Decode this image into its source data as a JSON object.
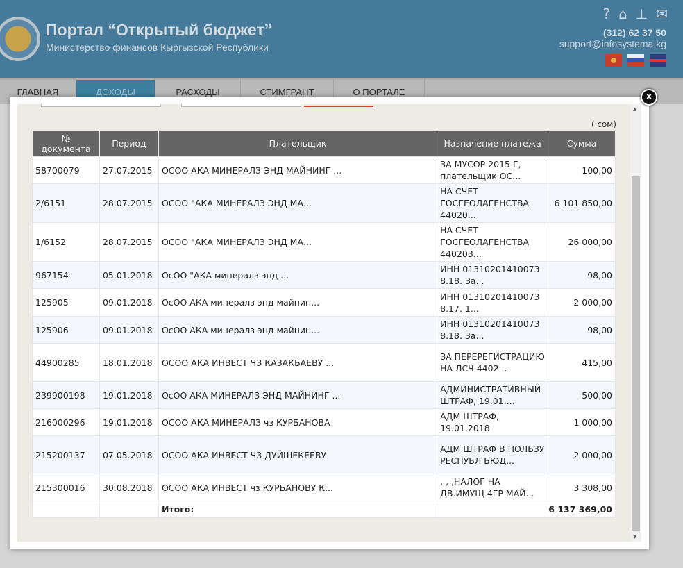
{
  "header": {
    "title": "Портал “Открытый бюджет”",
    "subtitle": "Министерство финансов Кыргызской Республики",
    "phone": "(312) 62 37 50",
    "email": "support@infosystema.kg",
    "icons": [
      "help-icon",
      "home-icon",
      "sitemap-icon",
      "mail-icon"
    ],
    "flags": [
      "kyrgyz-flag",
      "russian-flag",
      "uk-flag"
    ]
  },
  "nav": {
    "tabs": [
      {
        "label": "ГЛАВНАЯ"
      },
      {
        "label": "ДОХОДЫ",
        "active": true
      },
      {
        "label": "РАСХОДЫ"
      },
      {
        "label": "СТИМГРАНТ"
      },
      {
        "label": "О ПОРТАЛЕ"
      }
    ]
  },
  "modal": {
    "unit": "( сом)",
    "columns": [
      "№ документа",
      "Период",
      "Плательщик",
      "Назначение платежа",
      "Сумма"
    ],
    "rows": [
      [
        "58700079",
        "27.07.2015",
        "ОСОО АКА МИНЕРАЛЗ ЭНД МАЙНИНГ ...",
        "ЗА МУСОР 2015 Г, плательщик ОС...",
        "100,00"
      ],
      [
        "2/6151",
        "28.07.2015",
        "ОСОО \"АКА МИНЕРАЛЗ ЭНД МА...",
        "НА СЧЕТ ГОСГЕОЛАГЕНСТВА 44020...",
        "6 101 850,00"
      ],
      [
        "1/6152",
        "28.07.2015",
        "ОСОО \"АКА МИНЕРАЛЗ ЭНД МА...",
        "НА СЧЕТ ГОСГЕОЛАГЕНСТВА 440203...",
        "26 000,00"
      ],
      [
        "967154",
        "05.01.2018",
        "ОсОО \"АКА минералз энд ...",
        "ИНН 01310201410073 8.18. За...",
        "98,00"
      ],
      [
        "125905",
        "09.01.2018",
        "ОсОО АКА минералз энд майнин...",
        "ИНН 01310201410073 8.17. 1...",
        "2 000,00"
      ],
      [
        "125906",
        "09.01.2018",
        "ОсОО АКА минералз энд майнин...",
        "ИНН 01310201410073 8.18. За...",
        "98,00"
      ],
      [
        "44900285",
        "18.01.2018",
        "ОСОО АКА ИНВЕСТ ЧЗ КАЗАКБАЕВУ ...",
        "ЗА ПЕРЕРЕГИСТРАЦИЮ НА ЛСЧ 4402...",
        "415,00"
      ],
      [
        "239900198",
        "19.01.2018",
        "ОсОО АКА МИНЕРАЛЗ ЭНД МАЙНИНГ ...",
        "АДМИНИСТРАТИВНЫЙ ШТРАФ, 19.01....",
        "500,00"
      ],
      [
        "216000296",
        "19.01.2018",
        "ОСОО АКА МИНЕРАЛЗ чз КУРБАНОВА",
        "АДМ ШТРАФ, 19.01.2018",
        "1 000,00"
      ],
      [
        "215200137",
        "07.05.2018",
        "ОСОО АКА ИНВЕСТ ЧЗ ДУЙШЕКЕЕВУ",
        "АДМ ШТРАФ В ПОЛЬЗУ РЕСПУБЛ БЮД...",
        "2 000,00"
      ],
      [
        "215300016",
        "30.08.2018",
        "ОСОО АКА ИНВЕСТ чз КУРБАНОВУ К...",
        ", , ,НАЛОГ НА ДВ.ИМУЩ 4ГР МАЙ...",
        "3 308,00"
      ]
    ],
    "total_label": "Итого:",
    "total_value": "6 137 369,00",
    "close_label": "x"
  }
}
